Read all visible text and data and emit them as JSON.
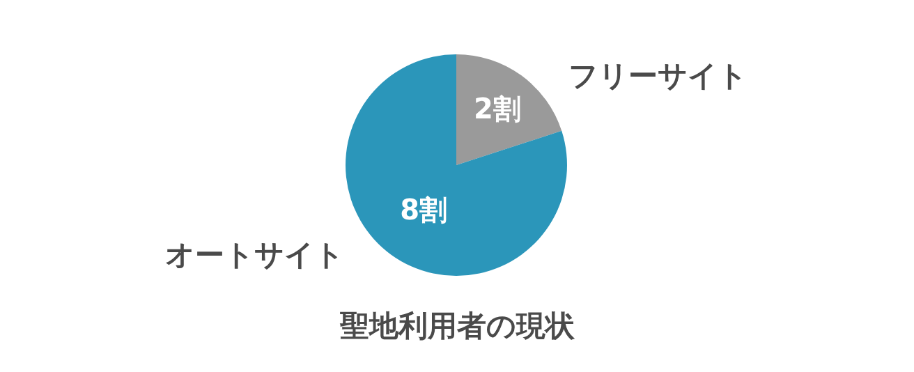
{
  "chart_data": {
    "type": "pie",
    "title": "聖地利用者の現状",
    "categories": [
      "フリーサイト",
      "オートサイト"
    ],
    "values": [
      2,
      8
    ],
    "colors": [
      "#9a9a9a",
      "#2b96ba"
    ],
    "value_labels": [
      "2割",
      "8割"
    ],
    "legend": false
  }
}
